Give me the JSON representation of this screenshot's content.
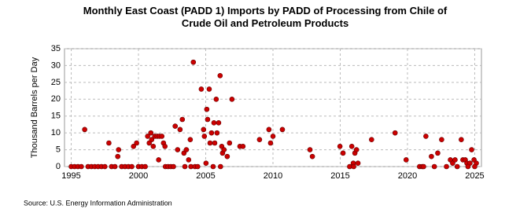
{
  "chart_data": {
    "type": "scatter",
    "title": "Monthly East Coast (PADD 1) Imports by PADD of Processing from Chile of Crude Oil and Petroleum Products",
    "y_label": "Thousand Barrels per Day",
    "source": "Source: U.S. Energy Information Administration",
    "color": "#cc0000",
    "grid": true,
    "xlim": [
      1994.5,
      2025.5
    ],
    "xticks": [
      1995,
      2000,
      2005,
      2010,
      2015,
      2020,
      2025
    ],
    "ylim": [
      0,
      35
    ],
    "yticks": [
      0,
      5,
      10,
      15,
      20,
      25,
      30,
      35
    ],
    "x": [
      1996.0,
      1997.8,
      1998.46,
      1998.52,
      1999.63,
      1999.86,
      2000.68,
      2000.8,
      2000.92,
      2000.98,
      2001.1,
      2001.21,
      2001.39,
      2001.56,
      2001.5,
      2001.74,
      2001.86,
      2001.97,
      2002.73,
      2002.91,
      2003.09,
      2003.26,
      2003.38,
      2003.56,
      2003.73,
      2003.85,
      2004.08,
      2004.67,
      2004.84,
      2004.9,
      2005.02,
      2005.08,
      2005.14,
      2005.26,
      2005.32,
      2005.43,
      2005.61,
      2005.67,
      2005.78,
      2005.84,
      2005.96,
      2006.07,
      2006.19,
      2006.25,
      2006.36,
      2006.6,
      2006.77,
      2006.95,
      2007.54,
      2007.77,
      2009.0,
      2009.7,
      2009.82,
      2010.0,
      2010.7,
      2012.75,
      2012.93,
      2014.98,
      2015.21,
      2015.86,
      2015.97,
      2016.09,
      2016.21,
      2016.32,
      2017.33,
      2019.08,
      2019.9,
      2021.37,
      2021.78,
      2022.25,
      2022.54,
      2023.19,
      2023.36,
      2023.54,
      2024.0,
      2024.12,
      2024.3,
      2024.42,
      2024.65,
      2024.77,
      2024.95,
      2025.12,
      1995.0,
      1995.25,
      1995.5,
      1995.75,
      1996.25,
      1996.5,
      1996.75,
      1997.0,
      1997.25,
      1997.5,
      1998.0,
      1998.25,
      1998.75,
      1999.0,
      1999.25,
      1999.5,
      2000.0,
      2000.25,
      2000.5,
      2002.0,
      2002.2,
      2002.4,
      2002.6,
      2003.45,
      2003.9,
      2004.2,
      2004.4,
      2005.55,
      2006.1,
      2015.7,
      2016.0,
      2020.9,
      2021.1,
      2021.2,
      2022.0,
      2022.9,
      2023.7,
      2024.5,
      2025.0
    ],
    "values": [
      11,
      7,
      3,
      5,
      6,
      7,
      9,
      7,
      10,
      8,
      6,
      9,
      9,
      9,
      2,
      9,
      7,
      6,
      12,
      5,
      11,
      14,
      4,
      5,
      2,
      8,
      31,
      23,
      11,
      9,
      1,
      17,
      14,
      23,
      7,
      10,
      13,
      7,
      20,
      10,
      13,
      27,
      6,
      4,
      5,
      3,
      7,
      20,
      6,
      6,
      8,
      11,
      7,
      9,
      11,
      5,
      3,
      6,
      4,
      6,
      1,
      4,
      5,
      1,
      8,
      10,
      2,
      9,
      3,
      4,
      8,
      2,
      1,
      2,
      8,
      2,
      2,
      1,
      1,
      5,
      2,
      1,
      0,
      0,
      0,
      0,
      0,
      0,
      0,
      0,
      0,
      0,
      0,
      0,
      0,
      0,
      0,
      0,
      0,
      0,
      0,
      0,
      0,
      0,
      0,
      0,
      0,
      0,
      0,
      0,
      0,
      0,
      0,
      0,
      0,
      0,
      0,
      0,
      0,
      0,
      0
    ]
  }
}
